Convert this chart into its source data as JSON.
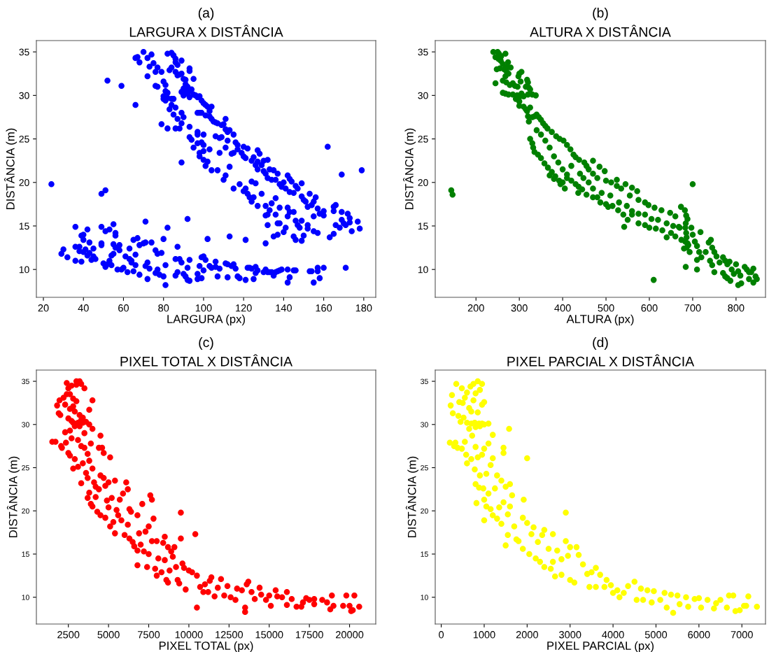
{
  "chart_data": [
    {
      "type": "scatter",
      "annotations": [
        "(a)"
      ],
      "title": "LARGURA X DISTÂNCIA",
      "xlabel": "LARGURA (px)",
      "ylabel": "DISTÂNCIA (m)",
      "marker": "circle",
      "grid": false,
      "xlim": [
        16.5,
        186
      ],
      "ylim": [
        6.8,
        36.3
      ],
      "xticks": [
        20,
        40,
        60,
        80,
        100,
        120,
        140,
        160,
        180
      ],
      "yticks": [
        10,
        15,
        20,
        25,
        30,
        35
      ],
      "series": [
        {
          "color": "#0000ff",
          "x": [
            70,
            66,
            67,
            68,
            72,
            74,
            75,
            73,
            77,
            76,
            79,
            72,
            76,
            77,
            80,
            81,
            81,
            82,
            80,
            80,
            81,
            82,
            84,
            85,
            84,
            83,
            85,
            86,
            87,
            89,
            88,
            86,
            82,
            79,
            89,
            90,
            82,
            84,
            85,
            86,
            86,
            87,
            84,
            83,
            86,
            87,
            88,
            89,
            89,
            90,
            91,
            91,
            92,
            90,
            89,
            90,
            91,
            92,
            93,
            94,
            93,
            95,
            96,
            97,
            98,
            95,
            93,
            93,
            99,
            100,
            101,
            102,
            103,
            104,
            98,
            97,
            99,
            101,
            103,
            104,
            105,
            106,
            107,
            109,
            110,
            111,
            111,
            112,
            113,
            115,
            108,
            109,
            106,
            97,
            97,
            100,
            93,
            94,
            95,
            93,
            97,
            99,
            100,
            98,
            100,
            103,
            98,
            102,
            100,
            101,
            104,
            107,
            108,
            111,
            112,
            114,
            115,
            116,
            117,
            117,
            119,
            120,
            122,
            120,
            121,
            124,
            125,
            127,
            128,
            126,
            127,
            127,
            129,
            130,
            132,
            130,
            131,
            133,
            132,
            134,
            135,
            136,
            137,
            138,
            139,
            140,
            142,
            143,
            144,
            141,
            143,
            145,
            146,
            147,
            149,
            149,
            150,
            151,
            153,
            155,
            156,
            154,
            152,
            157,
            158,
            160,
            160,
            165,
            166,
            165,
            169,
            172,
            173,
            169,
            170,
            171,
            173,
            177,
            178,
            174,
            168,
            166,
            165,
            163,
            162,
            169,
            179,
            110,
            111,
            113,
            115,
            118,
            120,
            121,
            122,
            123,
            124,
            125,
            127,
            129,
            131,
            131,
            132,
            132,
            133,
            134,
            136,
            136,
            137,
            137,
            135,
            138,
            138,
            140,
            141,
            142,
            142,
            143,
            145,
            145,
            146,
            146,
            147,
            148,
            149,
            149,
            150,
            152,
            152,
            155,
            155,
            157,
            131,
            124,
            126,
            24,
            49,
            51,
            52,
            59,
            66,
            89,
            92,
            71,
            36,
            36,
            36,
            39,
            38,
            38,
            39,
            40,
            40,
            40,
            41,
            42,
            42,
            43,
            43,
            44,
            45,
            45,
            46,
            29,
            30,
            32,
            49,
            49,
            49,
            50,
            51,
            51,
            52,
            53,
            53,
            54,
            54,
            55,
            55,
            55,
            56,
            56,
            56,
            57,
            58,
            58,
            59,
            60,
            61,
            62,
            63,
            63,
            64,
            64,
            65,
            65,
            66,
            66,
            67,
            68,
            68,
            70,
            71,
            71,
            72,
            72,
            73,
            74,
            76,
            76,
            77,
            77,
            78,
            79,
            80,
            80,
            81,
            81,
            82,
            86,
            86,
            87,
            87,
            88,
            89,
            90,
            91,
            92,
            92,
            93,
            93,
            97,
            97,
            98,
            99,
            99,
            100,
            100,
            101,
            102,
            103,
            104,
            106,
            106,
            107,
            108,
            111,
            112,
            112,
            113,
            114,
            115,
            116,
            117,
            118,
            121,
            121,
            122,
            123,
            124,
            125,
            126,
            126,
            127,
            130,
            131,
            132,
            133,
            134,
            135,
            136,
            137,
            138,
            139,
            142,
            142,
            143,
            145,
            146,
            153,
            154,
            155,
            157,
            157,
            158,
            160,
            171
          ],
          "values": [
            35,
            34.3,
            34.4,
            33.8,
            34.3,
            34.7,
            33.7,
            33.3,
            33.2,
            32.7,
            32.7,
            32.2,
            31.1,
            31,
            31.6,
            31.2,
            30.5,
            30.3,
            29.9,
            29.6,
            29.4,
            29.7,
            29.6,
            29.6,
            28.9,
            28.4,
            27.8,
            28.6,
            27.3,
            28,
            26.2,
            26.2,
            26.2,
            26.7,
            26.8,
            27.5,
            34.8,
            34.9,
            34.6,
            34.2,
            33.8,
            33.5,
            33.2,
            32.9,
            32.7,
            32.3,
            32.4,
            32.5,
            34,
            31.9,
            31.8,
            31.3,
            31,
            30.8,
            30.4,
            30,
            30.4,
            30.2,
            30.5,
            30.7,
            29.8,
            30.1,
            30,
            29.8,
            29.9,
            31.9,
            33.1,
            32.8,
            29.4,
            29.1,
            28.9,
            28.7,
            28.2,
            28.7,
            28,
            28,
            28,
            27.7,
            27.6,
            27.3,
            27,
            26.9,
            26.8,
            26.6,
            26.7,
            27.3,
            26.1,
            25.8,
            26,
            25.5,
            25.1,
            25.2,
            25.3,
            25.8,
            25.5,
            25.5,
            25.2,
            24.9,
            24,
            26.4,
            24.5,
            24.6,
            24.3,
            23.4,
            23.6,
            23.8,
            23,
            22.4,
            22.6,
            21.9,
            21.4,
            21.4,
            23.4,
            24,
            24.8,
            23.3,
            23.4,
            24.6,
            24.3,
            23.8,
            23.4,
            24.1,
            23.9,
            23,
            22.8,
            22.5,
            22.9,
            23.7,
            23.3,
            22,
            21.5,
            22.4,
            22,
            22.5,
            22.6,
            21.3,
            21,
            21.5,
            20.5,
            20.3,
            21.4,
            20.3,
            21,
            19.8,
            19.5,
            20,
            20.8,
            20.4,
            20.1,
            19.3,
            18.9,
            18.8,
            19.6,
            19.3,
            19.9,
            18.4,
            18,
            17.8,
            18.7,
            17.8,
            18.3,
            17.4,
            17.2,
            17,
            16.4,
            16.7,
            16.2,
            17.2,
            17.4,
            16.7,
            16.6,
            16.4,
            15.9,
            15.7,
            15.3,
            15.1,
            15.4,
            15.5,
            14.7,
            14.4,
            14.8,
            15.1,
            14.1,
            13.7,
            24.1,
            20.9,
            21.4,
            20.3,
            20.8,
            21.8,
            19.3,
            19.8,
            19,
            19.3,
            18.7,
            18.3,
            17.8,
            18.3,
            17.3,
            18.7,
            17.3,
            16.2,
            16.3,
            15.1,
            16.8,
            17.6,
            18.2,
            16.3,
            15.3,
            14,
            13.8,
            17.1,
            15.3,
            14.3,
            14.8,
            16.1,
            17.1,
            16.6,
            16.6,
            13.8,
            13.4,
            15.6,
            15.1,
            14.8,
            13.3,
            15.6,
            13.9,
            14.7,
            15.1,
            16.1,
            14.4,
            14.2,
            13,
            20.1,
            19.9,
            19.8,
            18.7,
            19.1,
            31.7,
            31.1,
            28.9,
            22.3,
            15.8,
            15.5,
            14.9,
            12.6,
            11,
            10.9,
            12.6,
            12.1,
            13.9,
            14,
            13.4,
            12,
            12.3,
            14.6,
            11.6,
            13.1,
            11.9,
            11.1,
            12.4,
            11.5,
            11.2,
            11.8,
            12.3,
            11.4,
            14.9,
            13,
            12.8,
            10.7,
            10.3,
            14.4,
            10.6,
            11,
            14.6,
            10.5,
            11.6,
            15.2,
            12.9,
            11.8,
            14.2,
            13.9,
            12.5,
            10,
            12.8,
            12.2,
            10,
            10.2,
            11.5,
            9.7,
            12.4,
            11.2,
            11,
            10.8,
            9.8,
            13.4,
            11.7,
            10.5,
            13.6,
            9.4,
            12.8,
            13,
            13.1,
            10.4,
            8.9,
            10.8,
            10.1,
            13.1,
            12.2,
            9.6,
            11.8,
            10,
            9.4,
            11.9,
            9.2,
            13.5,
            8.2,
            10.5,
            14.8,
            11.2,
            9.3,
            12.6,
            9.7,
            11.2,
            10.8,
            9.5,
            9.2,
            8.8,
            10.2,
            11.1,
            8.7,
            8.9,
            9.5,
            10.4,
            9,
            11.4,
            11.5,
            9.9,
            11.1,
            13.5,
            10.4,
            10.2,
            10.9,
            10.3,
            9.2,
            10.1,
            10.7,
            9.1,
            10.6,
            13.8,
            10.4,
            10.6,
            10.1,
            9.2,
            9,
            13.4,
            8.8,
            10.2,
            10.2,
            10.1,
            8.9,
            9.6,
            10.3,
            9.9,
            9.7,
            10,
            9.7,
            9.7,
            9.7,
            9.3,
            9.7,
            9.8,
            9.9,
            10,
            8.5,
            10,
            9.1,
            9.9,
            9.9,
            9.8,
            9.8,
            8.5,
            9.8,
            10.2,
            9,
            10.2,
            10.2
          ]
        }
      ]
    },
    {
      "type": "scatter",
      "annotations": [
        "(b)"
      ],
      "title": "ALTURA X DISTÂNCIA",
      "xlabel": "ALTURA (px)",
      "ylabel": "DISTÂNCIA (m)",
      "marker": "circle",
      "grid": false,
      "xlim": [
        106,
        868
      ],
      "ylim": [
        6.8,
        36.3
      ],
      "xticks": [
        200,
        300,
        400,
        500,
        600,
        700,
        800
      ],
      "yticks": [
        10,
        15,
        20,
        25,
        30,
        35
      ],
      "series": [
        {
          "color": "#008000",
          "x": [
            240,
            250,
            253,
            258,
            268,
            245,
            252,
            257,
            262,
            255,
            248,
            265,
            270,
            274,
            272,
            280,
            275,
            268,
            262,
            245,
            270,
            278,
            285,
            290,
            296,
            300,
            305,
            298,
            303,
            318,
            320,
            322,
            325,
            315,
            262,
            268,
            275,
            285,
            295,
            300,
            305,
            292,
            300,
            310,
            320,
            330,
            338,
            300,
            310,
            315,
            318,
            325,
            320,
            322,
            330,
            335,
            340,
            345,
            350,
            355,
            360,
            365,
            375,
            385,
            393,
            402,
            410,
            418,
            425,
            430,
            438,
            450,
            455,
            470,
            485,
            497,
            460,
            470,
            480,
            500,
            512,
            525,
            525,
            535,
            545,
            560,
            572,
            555,
            575,
            590,
            598,
            612,
            628,
            648,
            660,
            673,
            682,
            685,
            688,
            684,
            683,
            685,
            686,
            683,
            688,
            686,
            680,
            684,
            690,
            693,
            697,
            700,
            705,
            710,
            715,
            710,
            710,
            718,
            720,
            730,
            737,
            742,
            745,
            750,
            740,
            745,
            750,
            755,
            762,
            770,
            775,
            780,
            785,
            770,
            775,
            780,
            787,
            790,
            795,
            800,
            805,
            810,
            805,
            812,
            820,
            825,
            830,
            835,
            840,
            845,
            848,
            840,
            830,
            325,
            330,
            332,
            335,
            343,
            350,
            358,
            366,
            375,
            383,
            392,
            400,
            405,
            395,
            410,
            420,
            430,
            437,
            436,
            445,
            455,
            470,
            480,
            487,
            500,
            505,
            515,
            528,
            540,
            550,
            542,
            560,
            575,
            590,
            600,
            615,
            630,
            640,
            650,
            660,
            670,
            674,
            340,
            350,
            360,
            370,
            380,
            390,
            400,
            410,
            420,
            440,
            448,
            460,
            470,
            490,
            510,
            530,
            548,
            560,
            575,
            590,
            605,
            620,
            640,
            655,
            668,
            143,
            146,
            700,
            610,
            370,
            380
          ],
          "values": [
            35,
            35,
            34.8,
            34.5,
            34.8,
            34.4,
            34.2,
            34,
            33.6,
            33.1,
            33,
            33,
            32.8,
            33.8,
            33.3,
            33.2,
            32.5,
            32.2,
            31.7,
            31.4,
            31.5,
            31.2,
            31.4,
            31.1,
            31,
            32.5,
            32.7,
            32.2,
            31.6,
            31.8,
            31.5,
            30.9,
            30.7,
            31,
            30.3,
            30.2,
            30.1,
            30.1,
            30,
            29.8,
            30.2,
            29.6,
            29.3,
            29.9,
            30.1,
            30.1,
            30,
            28.8,
            28.7,
            28.4,
            28.2,
            28.6,
            27.6,
            27,
            27.5,
            27.6,
            27.8,
            27.5,
            27.2,
            26.8,
            26.5,
            26.2,
            25.8,
            25.3,
            25,
            24.8,
            24.3,
            23.8,
            23.2,
            22.9,
            22.6,
            22.3,
            21.9,
            22.5,
            21.8,
            21.3,
            21.5,
            21,
            20.5,
            20.2,
            20,
            20.3,
            19.6,
            19.3,
            19.8,
            19.4,
            19,
            18.5,
            18,
            17.7,
            17.4,
            17.1,
            16.8,
            16.5,
            16.1,
            17.2,
            16.8,
            16.2,
            15.8,
            15.3,
            14.8,
            14.2,
            13.7,
            13.2,
            13,
            12.5,
            12.4,
            10.3,
            12.8,
            12,
            14.8,
            14,
            13.2,
            12.7,
            12,
            11.1,
            10,
            14.3,
            11.4,
            12,
            13.1,
            13.4,
            12.5,
            12,
            11,
            10.5,
            9.7,
            11.5,
            10.8,
            11.4,
            11,
            10.6,
            10.9,
            9.6,
            9.2,
            9,
            8.7,
            10,
            9.5,
            10.6,
            9.8,
            9.3,
            8.2,
            8.4,
            10.3,
            10,
            9.7,
            9.7,
            10.1,
            9.2,
            8.9,
            8.5,
            8.9,
            25,
            24.5,
            24,
            23.5,
            23.2,
            22.8,
            22.2,
            21.7,
            21.2,
            20.7,
            20.2,
            20,
            19.3,
            19.8,
            20.5,
            20.2,
            19.8,
            19.5,
            18.8,
            19.2,
            18.6,
            18.3,
            18.3,
            17.7,
            17.5,
            17.2,
            17.3,
            16.8,
            16.3,
            15.7,
            14.9,
            16.3,
            15.3,
            15.1,
            14.8,
            14.7,
            14.5,
            13.7,
            14.2,
            13.8,
            14.8,
            13.4,
            26,
            25.5,
            24.8,
            24,
            23,
            22.3,
            21.5,
            20.9,
            21.9,
            21,
            20.5,
            20,
            19.3,
            18.8,
            18.5,
            17.7,
            17.3,
            16.7,
            16.4,
            16.3,
            15.8,
            15.7,
            15.3,
            15,
            14.9,
            19.1,
            18.6,
            19.8,
            8.8,
            20.8,
            20.4
          ]
        }
      ]
    },
    {
      "type": "scatter",
      "annotations": [
        "(c)"
      ],
      "title": "PIXEL TOTAL X DISTÂNCIA",
      "xlabel": "PIXEL TOTAL (px)",
      "ylabel": "DISTÂNCIA (m)",
      "marker": "circle",
      "grid": false,
      "xlim": [
        510,
        21630
      ],
      "ylim": [
        6.9,
        36.3
      ],
      "xticks": [
        2500,
        5000,
        7500,
        10000,
        12500,
        15000,
        17500,
        20000
      ],
      "yticks": [
        10,
        15,
        20,
        25,
        30,
        35
      ],
      "series": [
        {
          "color": "#ff0000",
          "x": [
            1500,
            1700,
            1800,
            1900,
            1950,
            2000,
            2050,
            2100,
            2200,
            2300,
            2300,
            2350,
            2400,
            2400,
            2500,
            2500,
            2500,
            2600,
            2600,
            2600,
            2600,
            2700,
            2700,
            2700,
            2800,
            2800,
            2800,
            2800,
            2900,
            2900,
            2900,
            3000,
            3000,
            3000,
            3100,
            3100,
            3100,
            3200,
            3200,
            3200,
            3300,
            3300,
            3300,
            3300,
            3400,
            3400,
            3400,
            3500,
            3500,
            3500,
            3600,
            3600,
            3700,
            3700,
            3700,
            3800,
            3800,
            3800,
            3800,
            3900,
            3900,
            4000,
            4000,
            4000,
            4000,
            4100,
            4200,
            4200,
            4300,
            4400,
            4400,
            4500,
            4500,
            4500,
            4600,
            4700,
            4700,
            4800,
            4800,
            4900,
            5000,
            5000,
            5100,
            5100,
            5200,
            5300,
            5400,
            5400,
            5500,
            5600,
            5700,
            5800,
            5900,
            6000,
            6100,
            6200,
            6200,
            6300,
            6300,
            6400,
            6500,
            6600,
            6800,
            6800,
            6800,
            6900,
            7000,
            7100,
            7200,
            7300,
            7400,
            7500,
            7500,
            7600,
            7700,
            7700,
            7800,
            7900,
            8000,
            8000,
            8100,
            8300,
            8400,
            8500,
            8500,
            8600,
            8700,
            8700,
            8800,
            8900,
            9000,
            9100,
            9200,
            9300,
            9400,
            9500,
            9500,
            9600,
            9700,
            9800,
            10000,
            10200,
            10400,
            10500,
            10500,
            10700,
            10900,
            11000,
            11200,
            11300,
            11400,
            11600,
            11800,
            12000,
            12200,
            12400,
            12600,
            12900,
            13000,
            13300,
            13500,
            13500,
            13600,
            13700,
            13900,
            14100,
            14400,
            14500,
            14800,
            15000,
            15100,
            15400,
            15500,
            15800,
            16100,
            16100,
            16400,
            16700,
            17000,
            17100,
            17300,
            17500,
            17800,
            17800,
            18300,
            18600,
            18800,
            18900,
            19000,
            19600,
            19800,
            20000,
            20100,
            20200,
            20300,
            20600
          ],
          "values": [
            28,
            28,
            32.2,
            31.3,
            32.8,
            31.1,
            27.5,
            27.3,
            33.1,
            32.3,
            29.1,
            27.9,
            34.8,
            33.5,
            34.2,
            30.7,
            26.7,
            33.5,
            31.8,
            29.3,
            26.4,
            34.5,
            30.4,
            28.4,
            33,
            32.1,
            30.2,
            24.9,
            31.5,
            29.8,
            26,
            35,
            34.6,
            32.7,
            30.2,
            28.2,
            25.1,
            35,
            31.1,
            29.8,
            34.7,
            30.5,
            27.5,
            23.2,
            30.8,
            30.2,
            25.5,
            34.2,
            29,
            27.3,
            30.3,
            24.4,
            26.6,
            23.8,
            21.5,
            31.7,
            30,
            25.8,
            22.1,
            27.8,
            20.8,
            32.8,
            29.5,
            24.9,
            20.5,
            23.3,
            22.8,
            21.6,
            19.9,
            27.3,
            22.5,
            28.7,
            24.1,
            19.5,
            27.3,
            26.7,
            23.8,
            22.9,
            19.2,
            21.2,
            23.3,
            20.4,
            26.2,
            18.2,
            21.5,
            18.7,
            23.5,
            17.4,
            20.1,
            19.5,
            21.3,
            18.9,
            22,
            17.2,
            23.3,
            22.5,
            18.4,
            16.8,
            20.2,
            19.9,
            16.4,
            15.9,
            15.4,
            19.5,
            13.7,
            17.4,
            16.1,
            20.8,
            15.3,
            17.6,
            13.5,
            18.2,
            15,
            21.8,
            21.3,
            16.5,
            19.1,
            13.3,
            12.5,
            16.5,
            14.5,
            12.9,
            16.3,
            17,
            14.3,
            12,
            15.8,
            11.7,
            13.1,
            15.3,
            14.7,
            15.8,
            13.5,
            12,
            11.6,
            19.8,
            16.8,
            13.9,
            13.4,
            10.9,
            13.1,
            12.9,
            17.3,
            8.8,
            12.5,
            11.2,
            10.6,
            11.5,
            10.6,
            11.9,
            12.3,
            10.1,
            11.1,
            12.1,
            10.2,
            11.3,
            10,
            9.7,
            11,
            10.8,
            8.8,
            8.3,
            11.5,
            11.8,
            10.6,
            9.8,
            11.1,
            10.3,
            9.7,
            10.2,
            9,
            10.8,
            10.1,
            10,
            10.6,
            9.1,
            9.8,
            8.9,
            8.9,
            9.4,
            9.9,
            9.7,
            9.2,
            9.8,
            9.7,
            9.4,
            8.6,
            10.2,
            9,
            9,
            10.2,
            9,
            8.4,
            8.5,
            10.2,
            8.9
          ]
        }
      ]
    },
    {
      "type": "scatter",
      "annotations": [
        "(d)"
      ],
      "title": "PIXEL PARCIAL X DISTÂNCIA",
      "xlabel": "PIXEL PARCIAL (px)",
      "ylabel": "DISTÂNCIA (m)",
      "marker": "circle",
      "grid": false,
      "xlim": [
        -140,
        7550
      ],
      "ylim": [
        6.9,
        36.3
      ],
      "xticks": [
        0,
        1000,
        2000,
        3000,
        4000,
        5000,
        6000,
        7000
      ],
      "yticks": [
        10,
        15,
        20,
        25,
        30,
        35
      ],
      "series": [
        {
          "color": "#ffff00",
          "x": [
            200,
            220,
            250,
            270,
            300,
            330,
            350,
            380,
            400,
            420,
            450,
            480,
            480,
            500,
            520,
            550,
            550,
            580,
            600,
            600,
            600,
            650,
            650,
            680,
            700,
            700,
            700,
            720,
            750,
            750,
            780,
            780,
            800,
            800,
            800,
            800,
            820,
            850,
            850,
            850,
            880,
            880,
            900,
            900,
            900,
            950,
            950,
            950,
            950,
            980,
            1000,
            1000,
            1000,
            1000,
            1000,
            1050,
            1050,
            1100,
            1100,
            1100,
            1150,
            1150,
            1200,
            1200,
            1200,
            1250,
            1300,
            1300,
            1350,
            1400,
            1400,
            1450,
            1450,
            1450,
            1500,
            1500,
            1550,
            1550,
            1580,
            1600,
            1600,
            1650,
            1700,
            1750,
            1800,
            1900,
            1900,
            1920,
            2000,
            2000,
            2050,
            2100,
            2150,
            2200,
            2250,
            2300,
            2350,
            2400,
            2400,
            2500,
            2550,
            2600,
            2600,
            2650,
            2700,
            2800,
            2800,
            2900,
            2900,
            2950,
            3000,
            3000,
            3100,
            3150,
            3200,
            3300,
            3400,
            3450,
            3500,
            3600,
            3600,
            3700,
            3800,
            3850,
            3950,
            4000,
            4100,
            4150,
            4250,
            4350,
            4500,
            4550,
            4650,
            4700,
            4800,
            4900,
            4950,
            5100,
            5200,
            5250,
            5350,
            5400,
            5500,
            5550,
            5700,
            5750,
            5900,
            6000,
            6050,
            6200,
            6350,
            6400,
            6500,
            6650,
            6700,
            6800,
            6850,
            6950,
            7050,
            7100,
            7150,
            7350
          ],
          "values": [
            27.9,
            32.2,
            33.4,
            31.3,
            27.5,
            27.9,
            34.7,
            27.3,
            31,
            32.6,
            30.3,
            34.2,
            27.2,
            32.5,
            30.8,
            33.1,
            28,
            26.5,
            33.7,
            30.2,
            25.5,
            31.9,
            29.5,
            34.4,
            31.5,
            30.1,
            26,
            28.7,
            34.7,
            32.8,
            30.2,
            24.8,
            33.6,
            29.7,
            27.4,
            23.1,
            20.9,
            35,
            31.4,
            26.2,
            30.1,
            22.7,
            34,
            29.8,
            24.1,
            34.7,
            30.1,
            32.3,
            26.5,
            22.6,
            32.6,
            30,
            27.2,
            21.3,
            18.9,
            24.3,
            20.5,
            30.1,
            27.8,
            22,
            25.3,
            20.2,
            26.1,
            28.8,
            19.5,
            22.6,
            24.1,
            19.1,
            20.4,
            23.5,
            18.5,
            27.3,
            26.7,
            21,
            16,
            22.8,
            19.6,
            17.2,
            29.5,
            23.1,
            20.5,
            21.8,
            18.2,
            16.7,
            16.5,
            19.2,
            15.6,
            21.3,
            26.1,
            18.6,
            15,
            17.3,
            18.1,
            14.5,
            16.4,
            14.1,
            17.2,
            13.5,
            17.8,
            15.6,
            13.3,
            17.3,
            14.1,
            12.4,
            15.4,
            14.4,
            12.6,
            16.5,
            19.8,
            14.8,
            12,
            15.8,
            11.7,
            15.8,
            14.9,
            13.8,
            12.7,
            11.2,
            12.9,
            11.2,
            13.4,
            12.6,
            11.2,
            12,
            11.4,
            10.5,
            10.8,
            10,
            10.5,
            11.3,
            11.8,
            9.7,
            11,
            9.7,
            10.8,
            9.4,
            10.7,
            9.7,
            10.5,
            8.8,
            10.3,
            8.2,
            10.2,
            9.2,
            10,
            8.9,
            9.8,
            9.9,
            8.8,
            9.7,
            8.7,
            9.3,
            9.7,
            8.8,
            10.2,
            10.2,
            8.4,
            8.5,
            9,
            9,
            10.1,
            8.9
          ]
        }
      ]
    }
  ]
}
